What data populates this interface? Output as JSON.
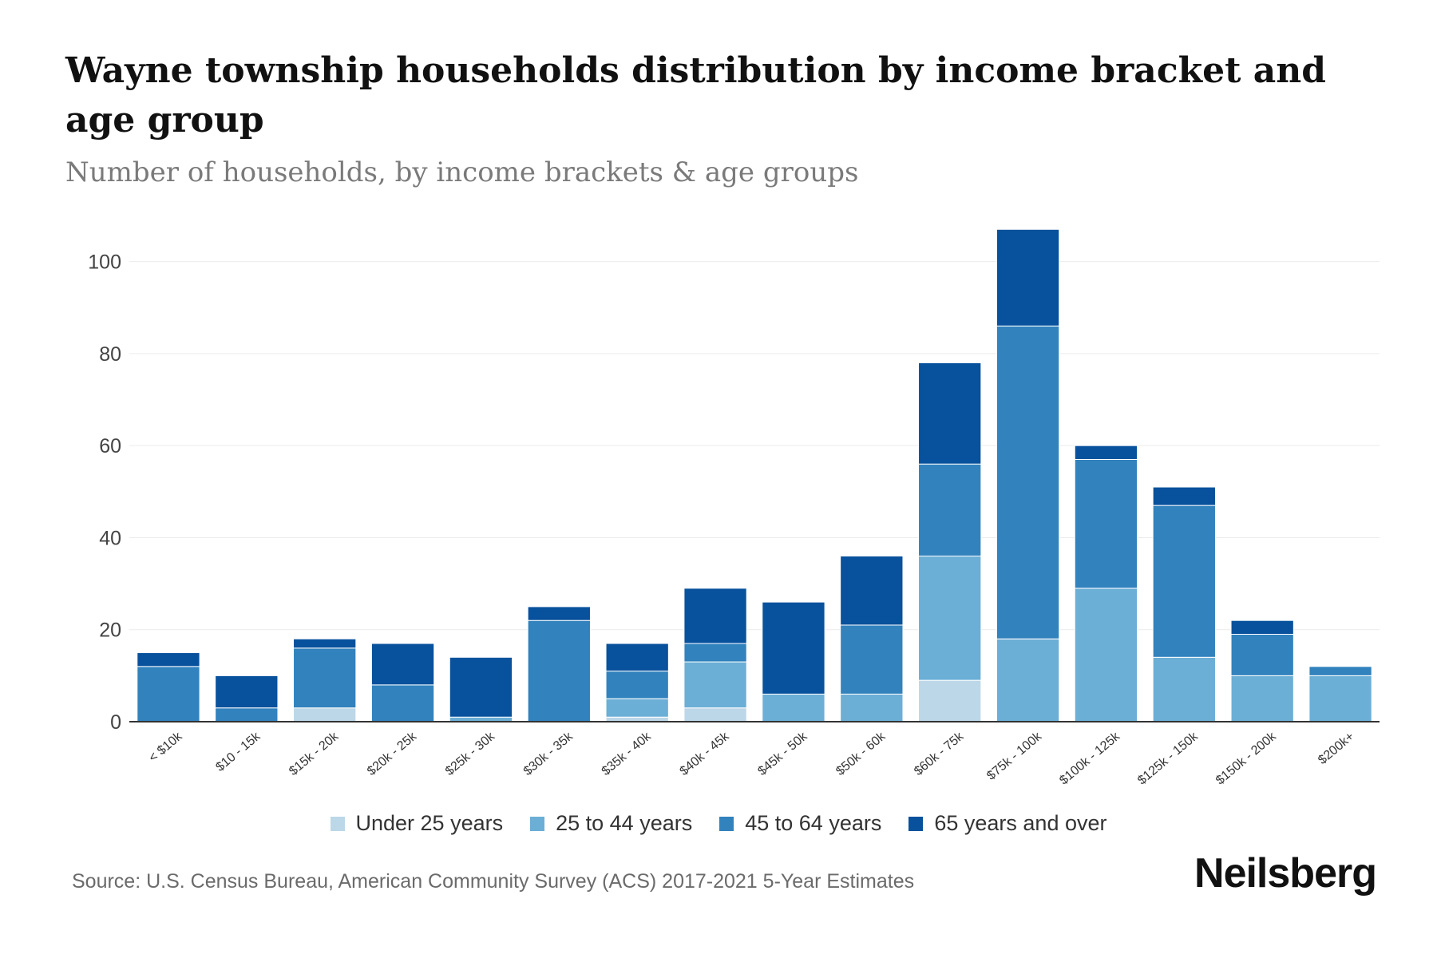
{
  "title": "Wayne township households distribution by income bracket and age group",
  "subtitle": "Number of households, by income brackets & age groups",
  "source": "Source: U.S. Census Bureau, American Community Survey (ACS) 2017-2021 5-Year Estimates",
  "brand": "Neilsberg",
  "colors": {
    "under_25": "#bcd7e8",
    "age_25_44": "#6baed6",
    "age_45_64": "#3182bd",
    "age_65_plus": "#08519c",
    "grid": "#ececec",
    "axis": "#333333"
  },
  "chart_data": {
    "type": "bar",
    "stacked": true,
    "title": "Wayne township households distribution by income bracket and age group",
    "xlabel": "",
    "ylabel": "",
    "ylim": [
      0,
      110
    ],
    "yticks": [
      0,
      20,
      40,
      60,
      80,
      100
    ],
    "grid": true,
    "legend_position": "bottom-center",
    "categories": [
      "< $10k",
      "$10 - 15k",
      "$15k - 20k",
      "$20k - 25k",
      "$25k - 30k",
      "$30k - 35k",
      "$35k - 40k",
      "$40k - 45k",
      "$45k - 50k",
      "$50k - 60k",
      "$60k - 75k",
      "$75k - 100k",
      "$100k - 125k",
      "$125k - 150k",
      "$150k - 200k",
      "$200k+"
    ],
    "series": [
      {
        "name": "Under 25 years",
        "color_key": "under_25",
        "values": [
          0,
          0,
          3,
          0,
          0,
          0,
          1,
          3,
          0,
          0,
          9,
          0,
          0,
          0,
          0,
          0
        ]
      },
      {
        "name": "25 to 44 years",
        "color_key": "age_25_44",
        "values": [
          0,
          0,
          0,
          0,
          1,
          0,
          4,
          10,
          6,
          6,
          27,
          18,
          29,
          14,
          10,
          10
        ]
      },
      {
        "name": "45 to 64 years",
        "color_key": "age_45_64",
        "values": [
          12,
          3,
          13,
          8,
          0,
          22,
          6,
          4,
          0,
          15,
          20,
          68,
          28,
          33,
          9,
          2
        ]
      },
      {
        "name": "65 years and over",
        "color_key": "age_65_plus",
        "values": [
          3,
          7,
          2,
          9,
          13,
          3,
          6,
          12,
          20,
          15,
          22,
          21,
          3,
          4,
          3,
          0
        ]
      }
    ]
  }
}
